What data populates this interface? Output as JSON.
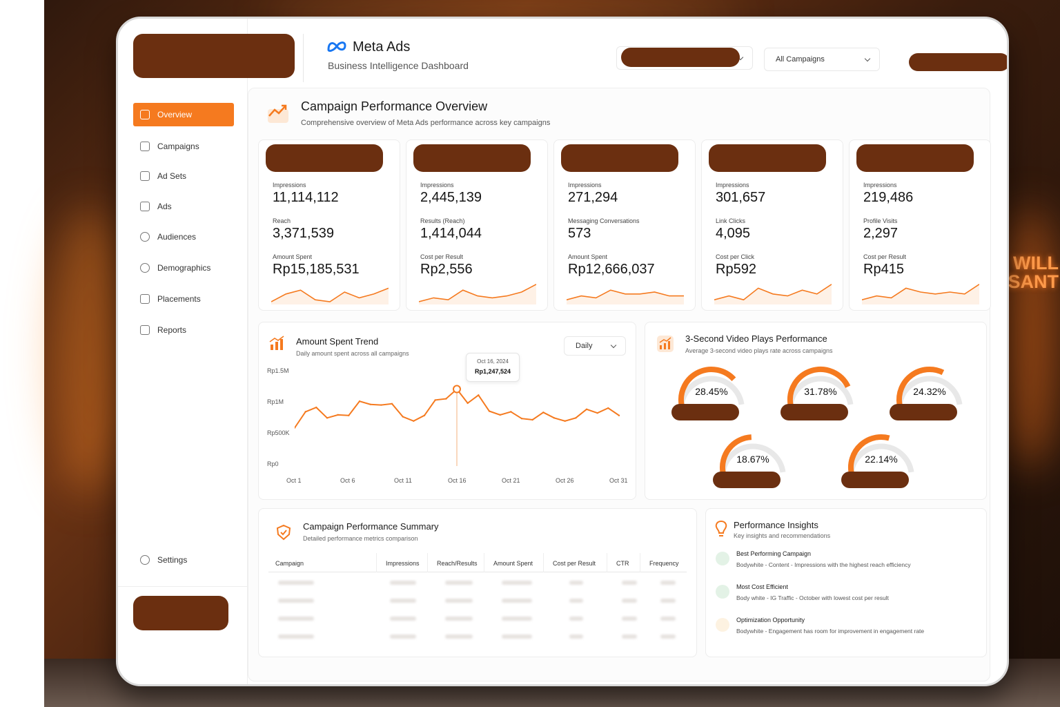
{
  "brand": {
    "title": "Meta Ads",
    "subtitle": "Business Intelligence Dashboard"
  },
  "header": {
    "campaign_filter": "All Campaigns"
  },
  "sidebar": {
    "items": [
      {
        "label": "Overview",
        "icon": "home-icon",
        "active": true
      },
      {
        "label": "Campaigns",
        "icon": "campaigns-icon"
      },
      {
        "label": "Ad Sets",
        "icon": "grid-icon"
      },
      {
        "label": "Ads",
        "icon": "ads-icon"
      },
      {
        "label": "Audiences",
        "icon": "users-icon"
      },
      {
        "label": "Demographics",
        "icon": "globe-icon"
      },
      {
        "label": "Placements",
        "icon": "document-icon"
      },
      {
        "label": "Reports",
        "icon": "report-icon"
      }
    ],
    "settings_label": "Settings"
  },
  "overview": {
    "title": "Campaign Performance Overview",
    "subtitle": "Comprehensive overview of Meta Ads performance across key campaigns"
  },
  "kpi_cards": [
    {
      "m1_label": "Impressions",
      "m1_value": "11,114,112",
      "m2_label": "Reach",
      "m2_value": "3,371,539",
      "m3_label": "Amount Spent",
      "m3_value": "Rp15,185,531"
    },
    {
      "m1_label": "Impressions",
      "m1_value": "2,445,139",
      "m2_label": "Results (Reach)",
      "m2_value": "1,414,044",
      "m3_label": "Cost per Result",
      "m3_value": "Rp2,556"
    },
    {
      "m1_label": "Impressions",
      "m1_value": "271,294",
      "m2_label": "Messaging Conversations",
      "m2_value": "573",
      "m3_label": "Amount Spent",
      "m3_value": "Rp12,666,037"
    },
    {
      "m1_label": "Impressions",
      "m1_value": "301,657",
      "m2_label": "Link Clicks",
      "m2_value": "4,095",
      "m3_label": "Cost per Click",
      "m3_value": "Rp592"
    },
    {
      "m1_label": "Impressions",
      "m1_value": "219,486",
      "m2_label": "Profile Visits",
      "m2_value": "2,297",
      "m3_label": "Cost per Result",
      "m3_value": "Rp415"
    }
  ],
  "spend_trend": {
    "title": "Amount Spent Trend",
    "subtitle": "Daily amount spent across all campaigns",
    "period": "Daily",
    "tooltip": {
      "date": "Oct 16, 2024",
      "value": "Rp1,247,524"
    }
  },
  "chart_data": {
    "type": "area",
    "y_ticks": [
      "Rp1.5M",
      "Rp1M",
      "Rp500K",
      "Rp0"
    ],
    "x_ticks": [
      "Oct 1",
      "Oct 6",
      "Oct 11",
      "Oct 16",
      "Oct 21",
      "Oct 26",
      "Oct 31"
    ],
    "ylim": [
      0,
      1500000
    ],
    "x": [
      "Oct 1",
      "Oct 2",
      "Oct 3",
      "Oct 4",
      "Oct 5",
      "Oct 6",
      "Oct 7",
      "Oct 8",
      "Oct 9",
      "Oct 10",
      "Oct 11",
      "Oct 12",
      "Oct 13",
      "Oct 14",
      "Oct 15",
      "Oct 16",
      "Oct 17",
      "Oct 18",
      "Oct 19",
      "Oct 20",
      "Oct 21",
      "Oct 22",
      "Oct 23",
      "Oct 24",
      "Oct 25",
      "Oct 26",
      "Oct 27",
      "Oct 28",
      "Oct 29",
      "Oct 30",
      "Oct 31"
    ],
    "values": [
      620000,
      880000,
      950000,
      780000,
      830000,
      820000,
      1050000,
      1000000,
      990000,
      1010000,
      800000,
      730000,
      820000,
      1070000,
      1090000,
      1247524,
      1020000,
      1150000,
      890000,
      830000,
      880000,
      770000,
      750000,
      870000,
      780000,
      730000,
      780000,
      920000,
      860000,
      940000,
      820000
    ]
  },
  "video_plays": {
    "title": "3-Second Video Plays Performance",
    "subtitle": "Average 3-second video plays rate across campaigns",
    "gauges": [
      {
        "value": "28.45%",
        "fraction": 0.2845
      },
      {
        "value": "31.78%",
        "fraction": 0.3178
      },
      {
        "value": "24.32%",
        "fraction": 0.2432
      },
      {
        "value": "18.67%",
        "fraction": 0.1867
      },
      {
        "value": "22.14%",
        "fraction": 0.2214
      }
    ]
  },
  "summary": {
    "title": "Campaign Performance Summary",
    "subtitle": "Detailed performance metrics comparison",
    "columns": [
      "Campaign",
      "Impressions",
      "Reach/Results",
      "Amount Spent",
      "Cost per Result",
      "CTR",
      "Frequency"
    ]
  },
  "insights": {
    "title": "Performance Insights",
    "subtitle": "Key insights and recommendations",
    "items": [
      {
        "title": "Best Performing Campaign",
        "desc": "Bodywhite - Content - Impressions with the highest reach efficiency",
        "color": "#2ea043"
      },
      {
        "title": "Most Cost Efficient",
        "desc": "Body white - IG Traffic - October with lowest cost per result",
        "color": "#2ea043"
      },
      {
        "title": "Optimization Opportunity",
        "desc": "Bodywhite - Engagement has room for improvement in engagement rate",
        "color": "#f0a020"
      }
    ]
  },
  "colors": {
    "accent": "#f57a1f",
    "redaction": "#6b2f10"
  }
}
